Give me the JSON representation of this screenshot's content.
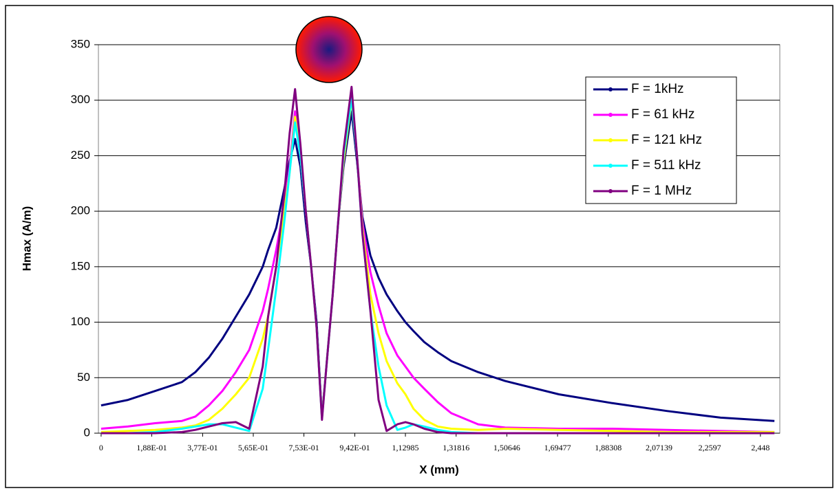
{
  "chart_data": {
    "type": "line",
    "y_label": "Hmax (A/m)",
    "x_label": "X (mm)",
    "x": [
      0,
      0.1,
      0.2,
      0.3,
      0.35,
      0.4,
      0.45,
      0.5,
      0.55,
      0.6,
      0.62,
      0.65,
      0.68,
      0.7,
      0.72,
      0.74,
      0.76,
      0.78,
      0.8,
      0.82,
      0.84,
      0.86,
      0.88,
      0.9,
      0.93,
      0.95,
      0.97,
      1.0,
      1.03,
      1.06,
      1.1,
      1.13,
      1.16,
      1.2,
      1.25,
      1.3,
      1.4,
      1.5,
      1.7,
      1.9,
      2.1,
      2.3,
      2.5
    ],
    "series": [
      {
        "name": "F = 1kHz",
        "color": "#000080",
        "values": [
          25,
          30,
          38,
          46,
          55,
          68,
          85,
          105,
          125,
          150,
          165,
          185,
          220,
          245,
          265,
          240,
          190,
          150,
          100,
          15,
          70,
          125,
          190,
          240,
          290,
          245,
          195,
          160,
          140,
          125,
          110,
          100,
          92,
          82,
          73,
          65,
          55,
          47,
          35,
          27,
          20,
          14,
          11
        ]
      },
      {
        "name": "F = 61 kHz",
        "color": "#ff00ff",
        "values": [
          4,
          6,
          9,
          11,
          15,
          25,
          38,
          55,
          75,
          110,
          130,
          165,
          205,
          240,
          290,
          250,
          200,
          150,
          95,
          14,
          70,
          125,
          190,
          245,
          305,
          250,
          190,
          145,
          115,
          90,
          70,
          60,
          50,
          40,
          28,
          18,
          8,
          5,
          4,
          4,
          3,
          2,
          1
        ]
      },
      {
        "name": "F = 121 kHz",
        "color": "#ffff00",
        "values": [
          1,
          2,
          3,
          5,
          7,
          12,
          22,
          35,
          50,
          85,
          105,
          150,
          200,
          235,
          285,
          250,
          200,
          150,
          95,
          14,
          70,
          125,
          190,
          245,
          300,
          250,
          185,
          125,
          90,
          65,
          45,
          35,
          22,
          12,
          6,
          4,
          3,
          4,
          3,
          2,
          1,
          1,
          1
        ]
      },
      {
        "name": "F = 511 kHz",
        "color": "#00ffff",
        "values": [
          0,
          0,
          1,
          4,
          6,
          8,
          8,
          5,
          2,
          40,
          75,
          130,
          190,
          235,
          280,
          250,
          200,
          150,
          95,
          13,
          70,
          125,
          190,
          250,
          302,
          250,
          180,
          110,
          60,
          25,
          3,
          5,
          8,
          6,
          3,
          1,
          0,
          0,
          0,
          0,
          0,
          0,
          0
        ]
      },
      {
        "name": "F = 1 MHz",
        "color": "#800080",
        "values": [
          0,
          0,
          0,
          1,
          3,
          6,
          9,
          10,
          4,
          60,
          105,
          150,
          215,
          270,
          310,
          260,
          200,
          150,
          95,
          12,
          70,
          125,
          190,
          255,
          312,
          250,
          180,
          110,
          30,
          2,
          8,
          10,
          8,
          4,
          1,
          0,
          0,
          0,
          0,
          0,
          0,
          0,
          0
        ]
      }
    ],
    "xlim": [
      -0.01,
      2.52
    ],
    "ylim": [
      0,
      350
    ],
    "yticks": [
      0,
      50,
      100,
      150,
      200,
      250,
      300,
      350
    ],
    "xticks": [
      0,
      {
        "value": 0.188,
        "label": "1,88E-01"
      },
      {
        "value": 0.377,
        "label": "3,77E-01"
      },
      {
        "value": 0.565,
        "label": "5,65E-01"
      },
      {
        "value": 0.753,
        "label": "7,53E-01"
      },
      {
        "value": 0.942,
        "label": "9,42E-01"
      },
      {
        "value": 1.12985,
        "label": "1,12985"
      },
      {
        "value": 1.31816,
        "label": "1,31816"
      },
      {
        "value": 1.50646,
        "label": "1,50646"
      },
      {
        "value": 1.69477,
        "label": "1,69477"
      },
      {
        "value": 1.88308,
        "label": "1,88308"
      },
      {
        "value": 2.07139,
        "label": "2,07139"
      },
      {
        "value": 2.2597,
        "label": "2,2597"
      },
      {
        "value": 2.448,
        "label": "2,448"
      }
    ],
    "grid": true,
    "legend": "right"
  }
}
